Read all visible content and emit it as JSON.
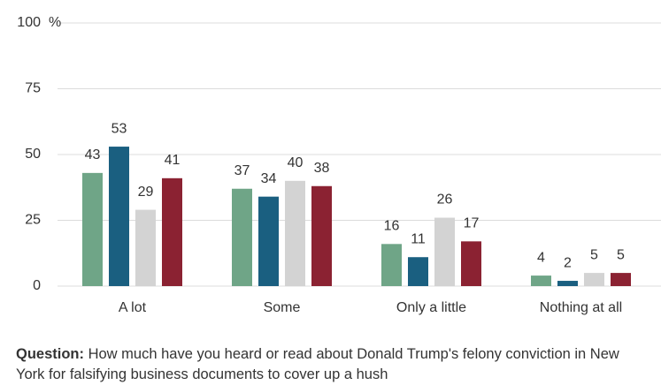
{
  "chart_data": {
    "type": "bar",
    "categories": [
      "A lot",
      "Some",
      "Only a little",
      "Nothing at all"
    ],
    "series": [
      {
        "color": "#6fa587",
        "values": [
          43,
          37,
          16,
          4
        ]
      },
      {
        "color": "#1a5f80",
        "values": [
          53,
          34,
          11,
          2
        ]
      },
      {
        "color": "#d3d3d3",
        "values": [
          29,
          40,
          26,
          5
        ]
      },
      {
        "color": "#8b2232",
        "values": [
          41,
          38,
          17,
          5
        ]
      }
    ],
    "ylim": [
      0,
      100
    ],
    "yticks": [
      0,
      25,
      50,
      75,
      100
    ],
    "y_unit": "%",
    "grid": true,
    "note_label": "Question:",
    "note": "How much have you heard or read about Donald Trump's felony conviction in New York for falsifying business documents to cover up a hush"
  }
}
